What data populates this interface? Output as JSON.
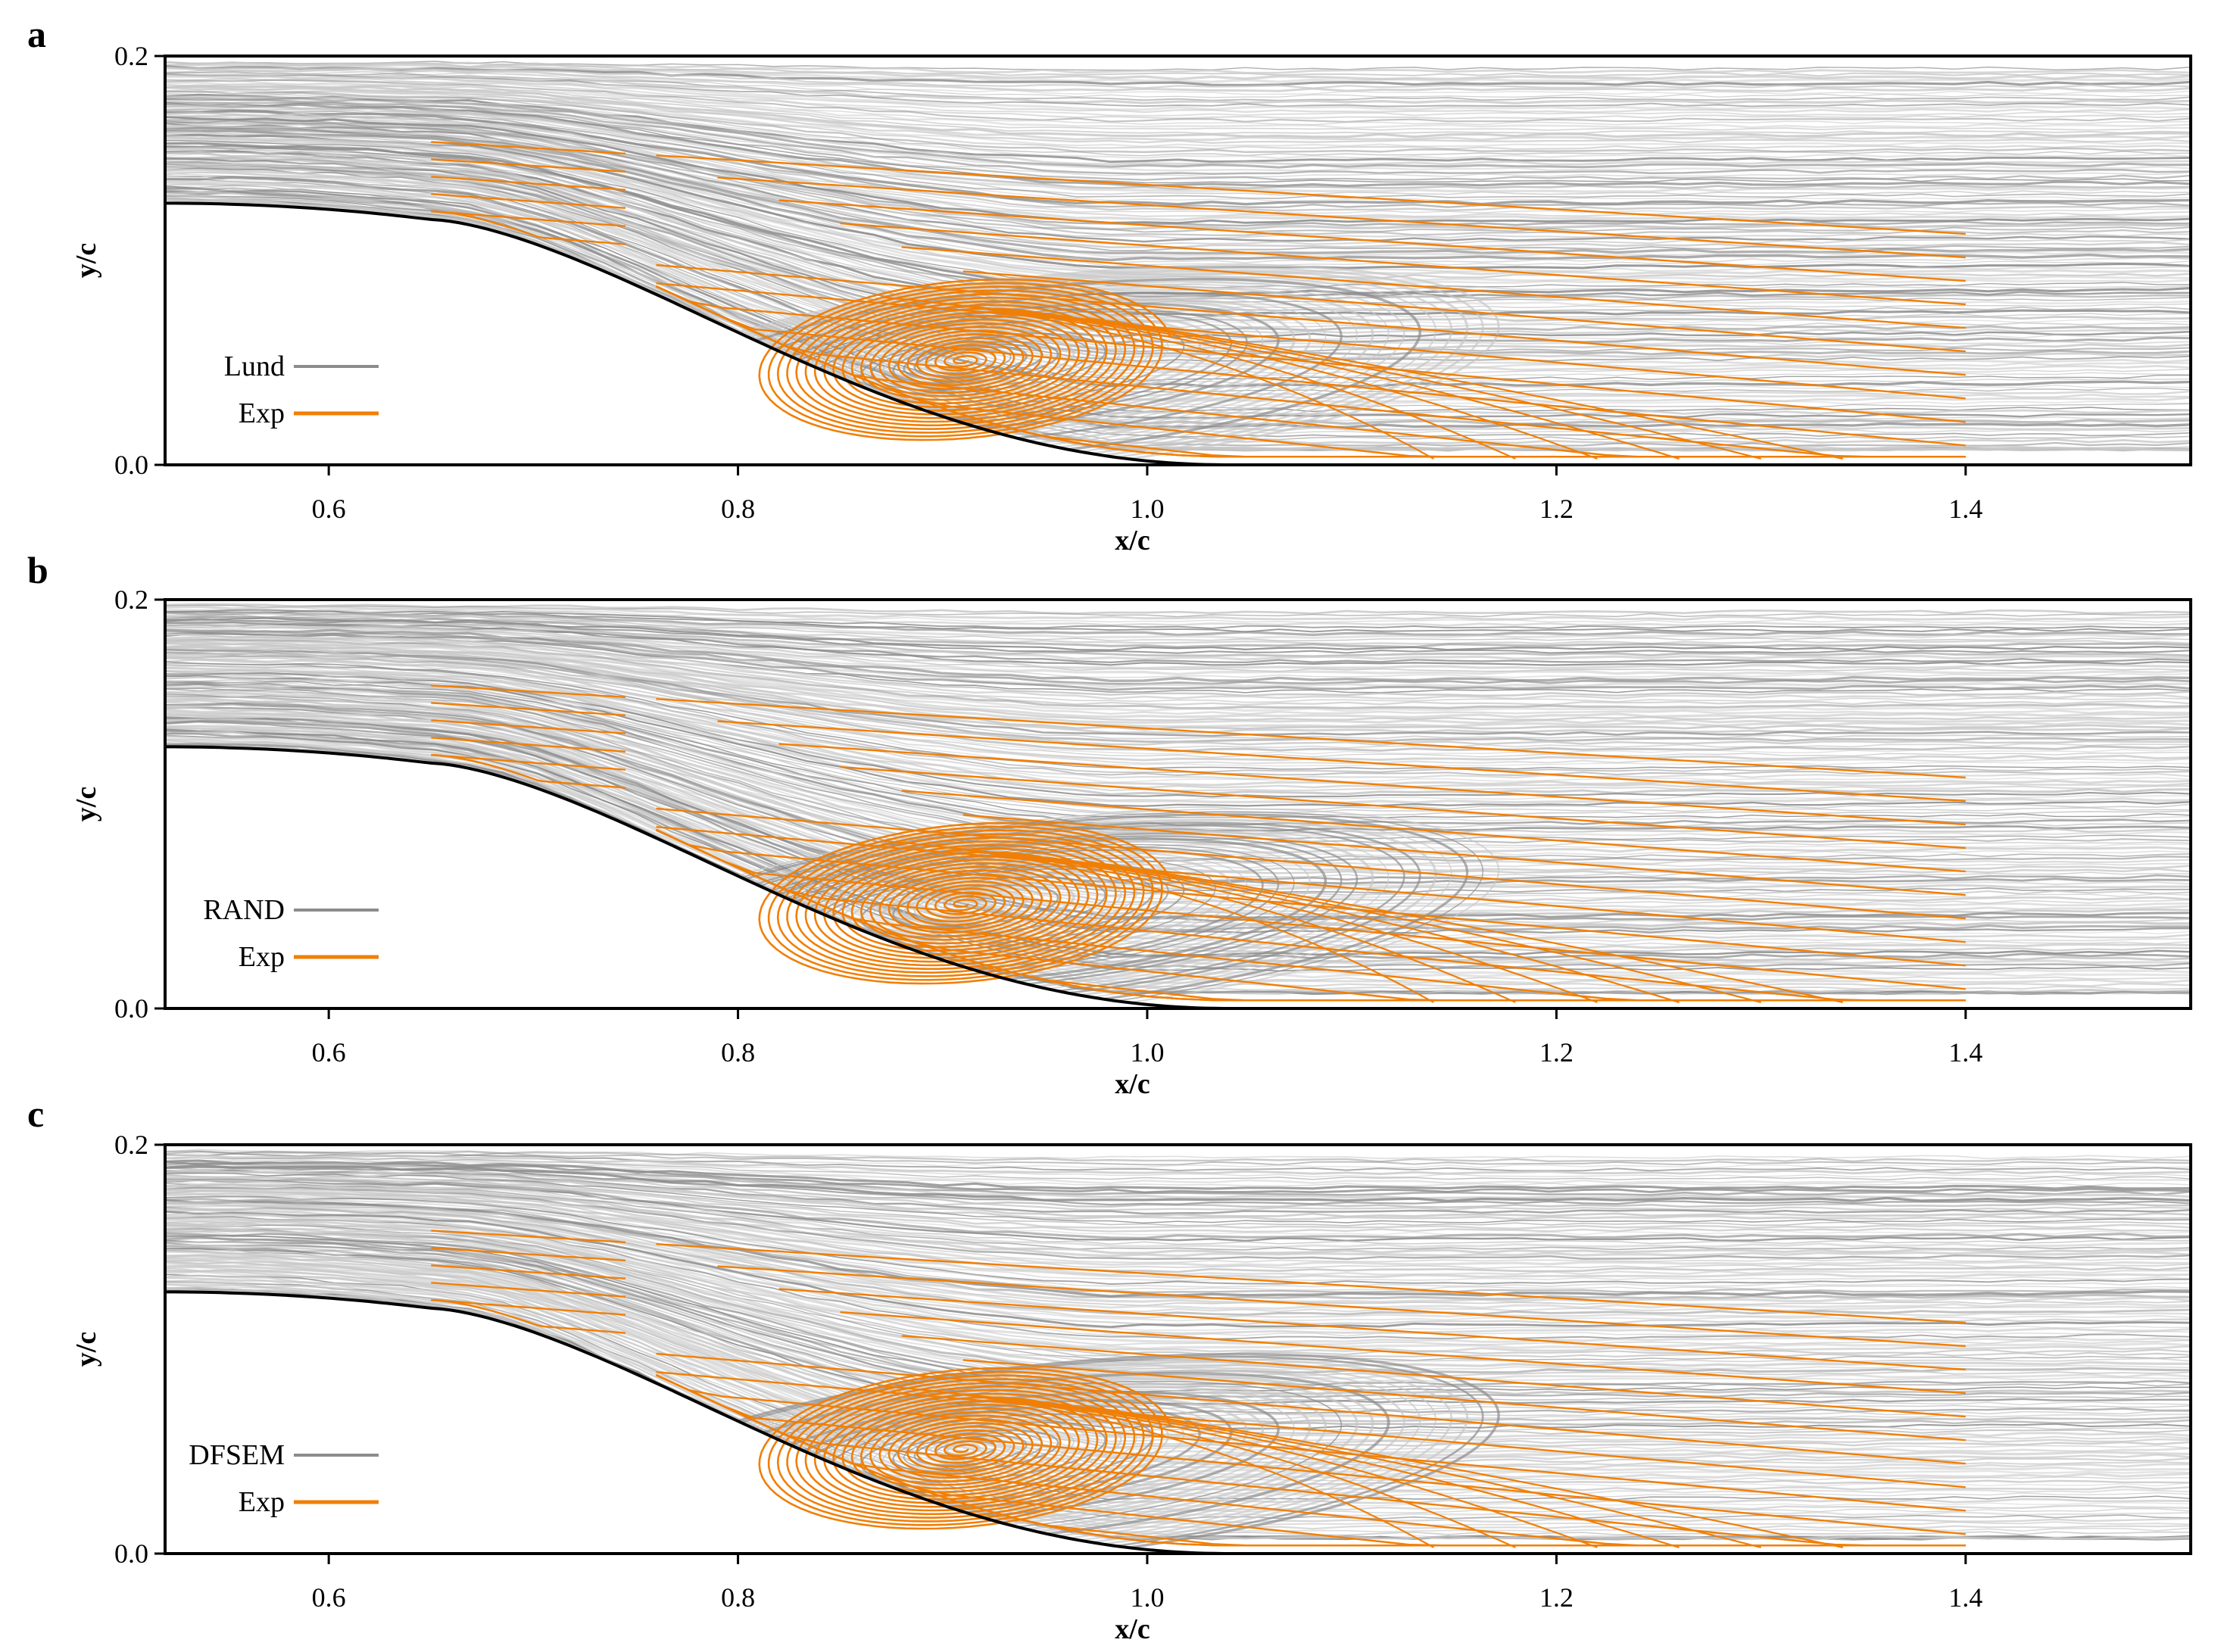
{
  "colors": {
    "sim": "#8c8c8c",
    "sim_light": "#c8c8c8",
    "exp": "#f07f06",
    "wall": "#000000",
    "frame": "#000000"
  },
  "chart_data": [
    {
      "type": "streamline",
      "panel": "a",
      "xlabel": "x/c",
      "ylabel": "y/c",
      "xlim": [
        0.52,
        1.51
      ],
      "ylim": [
        0.0,
        0.2
      ],
      "xticks": [
        0.6,
        0.8,
        1.0,
        1.2,
        1.4
      ],
      "xtick_labels": [
        "0.6",
        "0.8",
        "1.0",
        "1.2",
        "1.4"
      ],
      "yticks": [
        0.0,
        0.2
      ],
      "ytick_labels": [
        "0.0",
        "0.2"
      ],
      "legend_position": "lower-left",
      "series": [
        {
          "name": "Lund",
          "kind": "simulation",
          "color": "#8c8c8c"
        },
        {
          "name": "Exp",
          "kind": "experiment",
          "color": "#f07f06"
        }
      ],
      "vortex_center": [
        0.91,
        0.051
      ],
      "exp_reattachment_x": 1.14
    },
    {
      "type": "streamline",
      "panel": "b",
      "xlabel": "x/c",
      "ylabel": "y/c",
      "xlim": [
        0.52,
        1.51
      ],
      "ylim": [
        0.0,
        0.2
      ],
      "xticks": [
        0.6,
        0.8,
        1.0,
        1.2,
        1.4
      ],
      "xtick_labels": [
        "0.6",
        "0.8",
        "1.0",
        "1.2",
        "1.4"
      ],
      "yticks": [
        0.0,
        0.2
      ],
      "ytick_labels": [
        "0.0",
        "0.2"
      ],
      "legend_position": "lower-left",
      "series": [
        {
          "name": "RAND",
          "kind": "simulation",
          "color": "#8c8c8c"
        },
        {
          "name": "Exp",
          "kind": "experiment",
          "color": "#f07f06"
        }
      ],
      "vortex_center": [
        0.91,
        0.051
      ],
      "exp_reattachment_x": 1.14
    },
    {
      "type": "streamline",
      "panel": "c",
      "xlabel": "x/c",
      "ylabel": "y/c",
      "xlim": [
        0.52,
        1.51
      ],
      "ylim": [
        0.0,
        0.2
      ],
      "xticks": [
        0.6,
        0.8,
        1.0,
        1.2,
        1.4
      ],
      "xtick_labels": [
        "0.6",
        "0.8",
        "1.0",
        "1.2",
        "1.4"
      ],
      "yticks": [
        0.0,
        0.2
      ],
      "ytick_labels": [
        "0.0",
        "0.2"
      ],
      "legend_position": "lower-left",
      "series": [
        {
          "name": "DFSEM",
          "kind": "simulation",
          "color": "#8c8c8c"
        },
        {
          "name": "Exp",
          "kind": "experiment",
          "color": "#f07f06"
        }
      ],
      "vortex_center": [
        0.91,
        0.051
      ],
      "exp_reattachment_x": 1.14
    }
  ]
}
